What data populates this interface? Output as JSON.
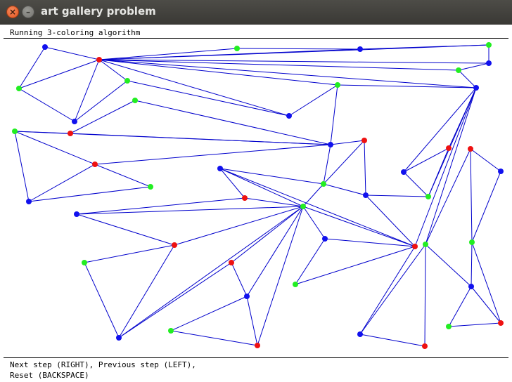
{
  "window": {
    "title": "art gallery problem",
    "close_icon": "close-icon",
    "minimize_icon": "minimize-icon"
  },
  "status": {
    "message": "Running 3-coloring algorithm"
  },
  "help": {
    "line1": "Next step (RIGHT), Previous step (LEFT),",
    "line2": "Reset (BACKSPACE)"
  },
  "colors": {
    "edge": "#0000cc",
    "red": "#ee1111",
    "green": "#22ee22",
    "blue": "#1111ee"
  }
}
